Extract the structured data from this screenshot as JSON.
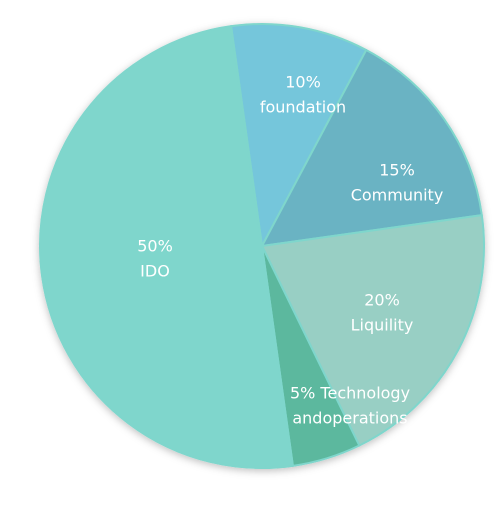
{
  "chart_data": {
    "type": "pie",
    "title": "",
    "slices": [
      {
        "name": "foundation",
        "label_lines": [
          "10%",
          "foundation"
        ],
        "value": 10,
        "color": "#74c6db"
      },
      {
        "name": "Community",
        "label_lines": [
          "15%",
          "Community"
        ],
        "value": 15,
        "color": "#6ab3c3"
      },
      {
        "name": "Liquility",
        "label_lines": [
          "20%",
          "Liquility"
        ],
        "value": 20,
        "color": "#98cfc4"
      },
      {
        "name": "Technology andoperations",
        "label_lines": [
          "5% Technology",
          "andoperations"
        ],
        "value": 5,
        "color": "#5bb89e"
      },
      {
        "name": "IDO",
        "label_lines": [
          "50%",
          "IDO"
        ],
        "value": 50,
        "color": "#7fd6cc"
      }
    ]
  }
}
